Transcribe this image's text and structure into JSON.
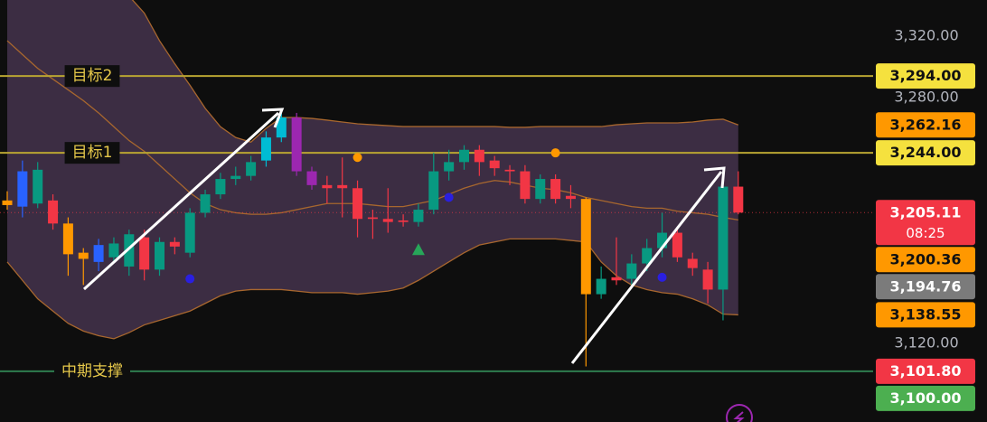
{
  "chart_data": {
    "type": "candlestick",
    "ylim": [
      3068.8,
      3343.5
    ],
    "yticks": [
      {
        "value": 3320,
        "label": "3,320.00"
      },
      {
        "value": 3280,
        "label": "3,280.00"
      },
      {
        "value": 3120,
        "label": "3,120.00"
      }
    ],
    "up_color": "#089981",
    "down_color": "#f23645",
    "candle_colors": [
      "#ff9800",
      "#2962ff",
      "#089981",
      "#f23645",
      "#ff9800",
      "#ff9800",
      "#2962ff",
      "#089981",
      "#089981",
      "#f23645",
      "#089981",
      "#f23645",
      "#089981",
      "#089981",
      "#089981",
      "#089981",
      "#089981",
      "#00bcd4",
      "#00bcd4",
      "#9c27b0",
      "#9c27b0",
      "#f23645",
      "#f23645",
      "#f23645",
      "#f23645",
      "#f23645",
      "#f23645",
      "#089981",
      "#089981",
      "#089981",
      "#089981",
      "#f23645",
      "#f23645",
      "#f23645",
      "#f23645",
      "#089981",
      "#f23645",
      "#f23645",
      "#ff9800",
      "#089981",
      "#f23645",
      "#089981",
      "#089981",
      "#089981",
      "#f23645",
      "#f23645",
      "#f23645",
      "#089981",
      "#f23645"
    ],
    "open": [
      3210,
      3209,
      3211,
      3213,
      3198,
      3179,
      3173,
      3176,
      3170,
      3189,
      3168,
      3186,
      3179,
      3205,
      3217,
      3227,
      3229,
      3239,
      3254,
      3267,
      3232,
      3223,
      3223,
      3221,
      3202,
      3201,
      3200,
      3199,
      3207,
      3232,
      3238,
      3246,
      3239,
      3233,
      3232,
      3214,
      3227,
      3216,
      3214,
      3152,
      3163,
      3162,
      3172,
      3182,
      3192,
      3175,
      3168,
      3155,
      3222
    ],
    "high": [
      3219,
      3239,
      3238,
      3217,
      3202,
      3182,
      3188,
      3189,
      3194,
      3194,
      3189,
      3189,
      3208,
      3220,
      3231,
      3235,
      3242,
      3258,
      3270,
      3270,
      3235,
      3229,
      3241,
      3226,
      3207,
      3221,
      3204,
      3211,
      3244,
      3246,
      3249,
      3249,
      3242,
      3236,
      3236,
      3230,
      3230,
      3223,
      3215,
      3170,
      3189,
      3178,
      3188,
      3205,
      3196,
      3179,
      3173,
      3226,
      3232
    ],
    "low": [
      3207,
      3202,
      3208,
      3194,
      3164,
      3158,
      3167,
      3172,
      3164,
      3161,
      3164,
      3178,
      3176,
      3202,
      3214,
      3223,
      3226,
      3235,
      3251,
      3229,
      3220,
      3211,
      3202,
      3189,
      3188,
      3192,
      3196,
      3196,
      3204,
      3226,
      3233,
      3229,
      3229,
      3223,
      3211,
      3211,
      3211,
      3208,
      3105,
      3149,
      3158,
      3158,
      3167,
      3176,
      3173,
      3164,
      3146,
      3135,
      3204
    ],
    "close": [
      3213,
      3232,
      3233,
      3198,
      3178,
      3175,
      3184,
      3185,
      3191,
      3168,
      3186,
      3183,
      3205,
      3217,
      3227,
      3229,
      3238,
      3254,
      3267,
      3232,
      3223,
      3221,
      3221,
      3201,
      3201,
      3199,
      3199,
      3207,
      3232,
      3238,
      3246,
      3238,
      3234,
      3232,
      3214,
      3227,
      3214,
      3214,
      3152,
      3162,
      3161,
      3172,
      3182,
      3192,
      3176,
      3169,
      3155,
      3222,
      3205.11
    ],
    "band_color": "#a8672e",
    "band_fill": "rgba(125, 88, 140, 0.42)",
    "upper": [
      3491,
      3473,
      3455,
      3438,
      3420,
      3402,
      3385,
      3367,
      3346,
      3335,
      3317,
      3302,
      3288,
      3273,
      3261,
      3254,
      3251,
      3260,
      3267,
      3267,
      3266.4,
      3265.3,
      3264.1,
      3262.9,
      3262.3,
      3261.7,
      3261.1,
      3261.1,
      3261.1,
      3261.1,
      3261.1,
      3261.1,
      3261.1,
      3260.6,
      3260.6,
      3261.1,
      3261.1,
      3261.1,
      3261.1,
      3261.1,
      3262.3,
      3262.9,
      3263.5,
      3263.5,
      3263.5,
      3264.1,
      3265.3,
      3265.9,
      3262.16
    ],
    "middle": [
      3317,
      3308,
      3299,
      3292,
      3285,
      3278,
      3270,
      3261,
      3252,
      3245,
      3236,
      3227,
      3218,
      3211,
      3207,
      3205,
      3204,
      3204,
      3205,
      3207,
      3209,
      3211,
      3211,
      3211,
      3210,
      3209,
      3209,
      3211,
      3213,
      3217,
      3221,
      3224,
      3226,
      3225,
      3223,
      3221,
      3220,
      3218,
      3215,
      3213,
      3211,
      3209,
      3208,
      3208,
      3206,
      3205,
      3204,
      3202,
      3200.36
    ],
    "lower": [
      3173,
      3161,
      3149,
      3141,
      3133,
      3128,
      3125,
      3123,
      3127,
      3132,
      3135,
      3138,
      3141,
      3146,
      3151,
      3154,
      3155,
      3155,
      3155,
      3154,
      3153,
      3153,
      3153,
      3152,
      3153,
      3154,
      3156,
      3161,
      3167,
      3173,
      3179,
      3184,
      3186,
      3188,
      3188,
      3188,
      3188,
      3187,
      3186,
      3173,
      3164,
      3158,
      3155,
      3153,
      3152,
      3149,
      3145,
      3139,
      3138.55
    ],
    "signals": [
      {
        "shape": "circle",
        "color": "#ff9800",
        "values": [
          null,
          null,
          null,
          null,
          null,
          null,
          null,
          null,
          null,
          null,
          null,
          null,
          null,
          null,
          null,
          null,
          null,
          null,
          null,
          null,
          null,
          null,
          null,
          3241,
          null,
          null,
          null,
          null,
          null,
          null,
          null,
          null,
          null,
          null,
          null,
          null,
          3244,
          null,
          null,
          null,
          null,
          null,
          null,
          null,
          null,
          null,
          null,
          null,
          null
        ]
      },
      {
        "shape": "circle",
        "color": "#2a1fe0",
        "values": [
          null,
          null,
          null,
          null,
          null,
          null,
          null,
          null,
          null,
          null,
          null,
          null,
          3162,
          null,
          null,
          null,
          null,
          null,
          null,
          null,
          null,
          null,
          null,
          null,
          null,
          null,
          null,
          null,
          null,
          3215,
          null,
          null,
          null,
          null,
          null,
          null,
          null,
          null,
          null,
          null,
          null,
          null,
          null,
          3163,
          null,
          null,
          null,
          null,
          null
        ]
      },
      {
        "shape": "triangle",
        "color": "#27a659",
        "values": [
          null,
          null,
          null,
          null,
          null,
          null,
          null,
          null,
          null,
          null,
          null,
          null,
          null,
          null,
          null,
          null,
          null,
          null,
          null,
          null,
          null,
          null,
          null,
          null,
          null,
          null,
          null,
          3181,
          null,
          null,
          null,
          null,
          null,
          null,
          null,
          null,
          null,
          null,
          null,
          null,
          null,
          null,
          null,
          null,
          null,
          null,
          null,
          null,
          null
        ]
      }
    ],
    "levels": [
      {
        "label": "目标2",
        "value": 3294,
        "color": "#b9a532"
      },
      {
        "label": "目标1",
        "value": 3244,
        "color": "#b9a532"
      },
      {
        "label": "中期支撑",
        "value": 3101.8,
        "color": "#2f7d4f"
      }
    ],
    "level_text_color": "#e6c84a",
    "price_labels": [
      {
        "value": 3294,
        "label": "3,294.00",
        "bg": "#f5e13e",
        "fg": "#111111"
      },
      {
        "value": 3262.16,
        "label": "3,262.16",
        "bg": "#ff9800",
        "fg": "#111111"
      },
      {
        "value": 3244,
        "label": "3,244.00",
        "bg": "#f5e13e",
        "fg": "#111111"
      },
      {
        "value": 3205.11,
        "label": "3,205.11",
        "sublabel": "08:25",
        "bg": "#f23645",
        "fg": "#ffffff"
      },
      {
        "value": 3200.36,
        "label": "3,200.36",
        "bg": "#ff9800",
        "fg": "#111111"
      },
      {
        "value": 3194.76,
        "label": "3,194.76",
        "bg": "#7b7b7b",
        "fg": "#ffffff"
      },
      {
        "value": 3138.55,
        "label": "3,138.55",
        "bg": "#ff9800",
        "fg": "#111111"
      },
      {
        "value": 3101.8,
        "label": "3,101.80",
        "bg": "#f23645",
        "fg": "#ffffff"
      },
      {
        "value": 3100,
        "label": "3,100.00",
        "bg": "#4caf50",
        "fg": "#ffffff"
      }
    ]
  }
}
